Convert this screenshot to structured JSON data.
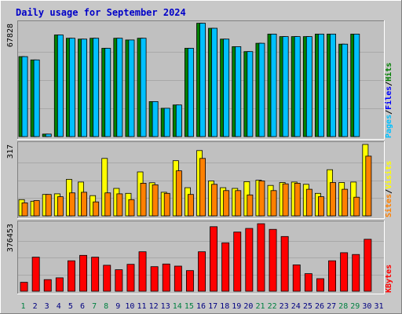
{
  "chart_data": {
    "type": "bar",
    "title": "Daily usage for September 2024",
    "categories": [
      "1",
      "2",
      "3",
      "4",
      "5",
      "6",
      "7",
      "8",
      "9",
      "10",
      "11",
      "12",
      "13",
      "14",
      "15",
      "16",
      "17",
      "18",
      "19",
      "20",
      "21",
      "22",
      "23",
      "24",
      "25",
      "26",
      "27",
      "28",
      "29",
      "30",
      "31"
    ],
    "weekend_categories": [
      "1",
      "7",
      "8",
      "14",
      "15",
      "21",
      "22",
      "28",
      "29"
    ],
    "panels": [
      {
        "ylabel_parts": [
          "Pages",
          "Files",
          "Hits"
        ],
        "ymax_label": "67828",
        "ylim": [
          0,
          67828
        ],
        "series": [
          {
            "name": "Hits",
            "color": "#00805f",
            "values": [
              48000,
              46000,
              1500,
              61000,
              59000,
              58500,
              59000,
              53000,
              59000,
              58000,
              59000,
              21000,
              17000,
              19000,
              53000,
              68000,
              65000,
              58500,
              54000,
              51000,
              56000,
              61500,
              60000,
              60000,
              60000,
              61500,
              61500,
              55500,
              61500,
              null,
              null
            ]
          },
          {
            "name": "Files",
            "color": "#00a0ff",
            "values": [
              48000,
              46000,
              1500,
              61000,
              59000,
              58500,
              59000,
              53000,
              59000,
              58000,
              59000,
              21000,
              17000,
              19000,
              53000,
              68000,
              65000,
              58500,
              54000,
              51000,
              56000,
              61500,
              60000,
              60000,
              60000,
              61500,
              61500,
              55500,
              61500,
              null,
              null
            ]
          }
        ]
      },
      {
        "ylabel_parts": [
          "Sites",
          "Visits"
        ],
        "ymax_label": "317",
        "ylim": [
          0,
          317
        ],
        "series": [
          {
            "name": "Visits",
            "color": "#ffff00",
            "values": [
              72,
              65,
              95,
              98,
              162,
              150,
              90,
              255,
              122,
              100,
              195,
              147,
              105,
              245,
              125,
              290,
              155,
              125,
              122,
              152,
              158,
              135,
              148,
              150,
              140,
              100,
              205,
              148,
              150,
              317,
              null
            ]
          },
          {
            "name": "Sites",
            "color": "#ff8000",
            "values": [
              58,
              68,
              95,
              85,
              102,
              105,
              62,
              102,
              98,
              72,
              145,
              138,
              100,
              200,
              95,
              255,
              140,
              112,
              112,
              93,
              155,
              112,
              142,
              145,
              118,
              85,
              148,
              118,
              83,
              265,
              null
            ]
          }
        ]
      },
      {
        "ylabel_parts": [
          "KBytes"
        ],
        "ymax_label": "376453",
        "ylim": [
          0,
          376453
        ],
        "series": [
          {
            "name": "KBytes",
            "color": "#ff0000",
            "values": [
              50000,
              190000,
              65000,
              75000,
              170000,
              200000,
              190000,
              145000,
              120000,
              150000,
              220000,
              137000,
              152000,
              140000,
              115000,
              220000,
              360000,
              270000,
              330000,
              350000,
              376453,
              345000,
              305000,
              147000,
              98000,
              70000,
              170000,
              215000,
              205000,
              290000,
              null
            ]
          }
        ]
      }
    ]
  },
  "colors": {
    "background": "#c8c8c8",
    "plot": "#c0c0c0",
    "title": "#0000ff",
    "weekday_label": "#000080",
    "weekend_label": "#008040",
    "pages": "#00c0ff",
    "files": "#0000ff",
    "hits": "#008000",
    "sites": "#ff8000",
    "visits": "#ffff00",
    "kbytes": "#ff0000"
  }
}
